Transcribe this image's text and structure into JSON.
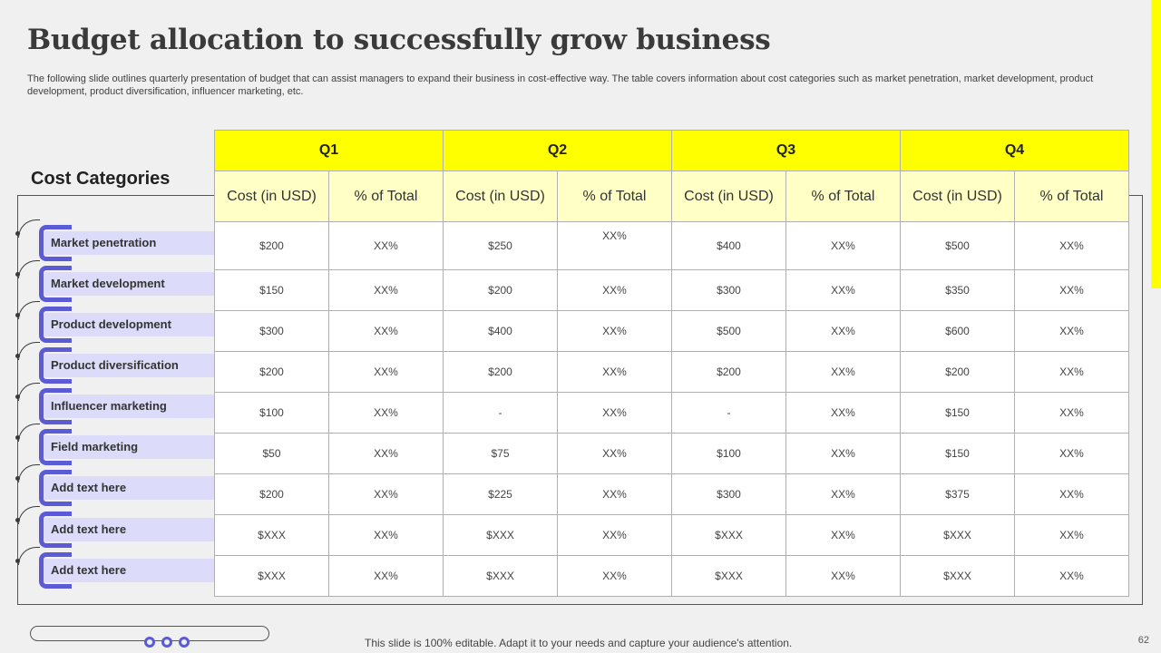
{
  "title": "Budget allocation to successfully grow business",
  "subtitle": "The following slide outlines quarterly presentation of budget that can assist managers to expand their business in cost-effective way.  The table covers information about cost categories such as market penetration, market development, product development, product diversification, influencer marketing, etc.",
  "cost_categories_heading": "Cost Categories",
  "categories": [
    "Market penetration",
    "Market development",
    "Product development",
    "Product diversification",
    "Influencer marketing",
    "Field marketing",
    "Add text here",
    "Add text here",
    "Add text here"
  ],
  "quarters": [
    "Q1",
    "Q2",
    "Q3",
    "Q4"
  ],
  "sub_headers": {
    "cost": "Cost (in USD)",
    "pct": "% of Total"
  },
  "rows": [
    [
      "$200",
      "XX%",
      "$250",
      "XX%",
      "$400",
      "XX%",
      "$500",
      "XX%"
    ],
    [
      "$150",
      "XX%",
      "$200",
      "XX%",
      "$300",
      "XX%",
      "$350",
      "XX%"
    ],
    [
      "$300",
      "XX%",
      "$400",
      "XX%",
      "$500",
      "XX%",
      "$600",
      "XX%"
    ],
    [
      "$200",
      "XX%",
      "$200",
      "XX%",
      "$200",
      "XX%",
      "$200",
      "XX%"
    ],
    [
      "$100",
      "XX%",
      "-",
      "XX%",
      "-",
      "XX%",
      "$150",
      "XX%"
    ],
    [
      "$50",
      "XX%",
      "$75",
      "XX%",
      "$100",
      "XX%",
      "$150",
      "XX%"
    ],
    [
      "$200",
      "XX%",
      "$225",
      "XX%",
      "$300",
      "XX%",
      "$375",
      "XX%"
    ],
    [
      "$XXX",
      "XX%",
      "$XXX",
      "XX%",
      "$XXX",
      "XX%",
      "$XXX",
      "XX%"
    ],
    [
      "$XXX",
      "XX%",
      "$XXX",
      "XX%",
      "$XXX",
      "XX%",
      "$XXX",
      "XX%"
    ]
  ],
  "footer_note": "This slide is 100% editable. Adapt it to your needs and capture your audience's attention.",
  "page_number": "62",
  "colors": {
    "accent_yellow": "#ffff00",
    "header_light_yellow": "#ffffc6",
    "category_purple": "#5b5bd6",
    "category_bar": "#dcdcfa"
  }
}
